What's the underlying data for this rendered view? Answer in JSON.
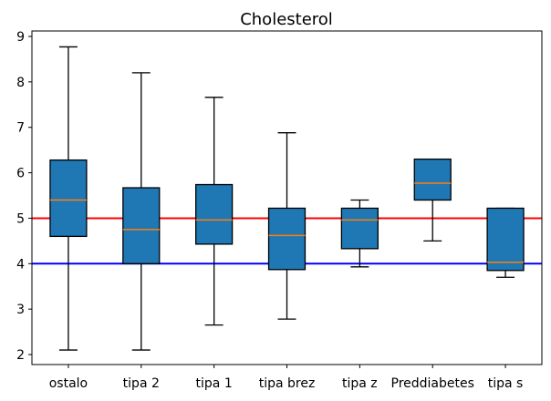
{
  "chart_data": {
    "type": "box",
    "title": "Cholesterol",
    "xlabel": "",
    "ylabel": "",
    "ylim": [
      1.78,
      9.12
    ],
    "yticks": [
      2,
      3,
      4,
      5,
      6,
      7,
      8,
      9
    ],
    "grid": false,
    "categories": [
      "ostalo",
      "tipa 2",
      "tipa 1",
      "tipa brez",
      "tipa z",
      "Preddiabetes",
      "tipa s"
    ],
    "boxes": [
      {
        "category": "ostalo",
        "whisker_low": 2.1,
        "q1": 4.6,
        "median": 5.4,
        "q3": 6.28,
        "whisker_high": 8.77
      },
      {
        "category": "tipa 2",
        "whisker_low": 2.1,
        "q1": 4.0,
        "median": 4.75,
        "q3": 5.67,
        "whisker_high": 8.2
      },
      {
        "category": "tipa 1",
        "whisker_low": 2.65,
        "q1": 4.43,
        "median": 4.96,
        "q3": 5.74,
        "whisker_high": 7.66
      },
      {
        "category": "tipa brez",
        "whisker_low": 2.78,
        "q1": 3.87,
        "median": 4.62,
        "q3": 5.22,
        "whisker_high": 6.88
      },
      {
        "category": "tipa z",
        "whisker_low": 3.93,
        "q1": 4.33,
        "median": 4.96,
        "q3": 5.22,
        "whisker_high": 5.4
      },
      {
        "category": "Preddiabetes",
        "whisker_low": 4.5,
        "q1": 5.4,
        "median": 5.77,
        "q3": 6.3,
        "whisker_high": 6.3
      },
      {
        "category": "tipa s",
        "whisker_low": 3.7,
        "q1": 3.85,
        "median": 4.03,
        "q3": 5.22,
        "whisker_high": 5.22
      }
    ],
    "reference_lines": [
      {
        "y": 5.0,
        "color": "#ff0000"
      },
      {
        "y": 4.0,
        "color": "#0000ff"
      }
    ],
    "colors": {
      "box_fill": "#1f77b4",
      "median": "#ff7f0e",
      "edge": "#000000"
    }
  }
}
